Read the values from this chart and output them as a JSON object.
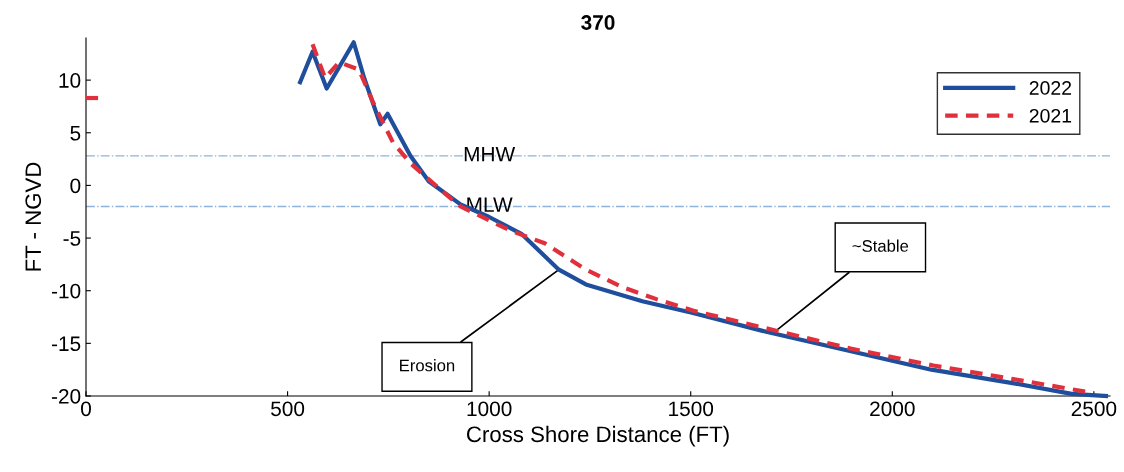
{
  "chart_data": {
    "type": "line",
    "title": "370",
    "xlabel": "Cross Shore Distance (FT)",
    "ylabel": "FT - NGVD",
    "xlim": [
      0,
      2540
    ],
    "ylim": [
      -20,
      14
    ],
    "xticks": [
      0,
      500,
      1000,
      1500,
      2000,
      2500
    ],
    "yticks": [
      -20,
      -15,
      -10,
      -5,
      0,
      5,
      10
    ],
    "grid": false,
    "legend": "top right",
    "series": [
      {
        "name": "2022",
        "color": "#1f4e9c",
        "line_style": "solid",
        "x": [
          531,
          562,
          597,
          664,
          690,
          730,
          748,
          805,
          850,
          929,
          1000,
          1080,
          1173,
          1240,
          1380,
          1503,
          1687,
          1892,
          2097,
          2302,
          2445,
          2530
        ],
        "values": [
          9.8,
          12.7,
          9.2,
          13.6,
          10.2,
          5.8,
          6.8,
          2.8,
          0.4,
          -1.8,
          -3.0,
          -4.6,
          -8.0,
          -9.4,
          -11.0,
          -12.1,
          -13.9,
          -15.7,
          -17.5,
          -18.8,
          -19.8,
          -20
        ]
      },
      {
        "name": "2021",
        "color": "#e0303c",
        "line_style": "dashed",
        "x": [
          562,
          593,
          628,
          677,
          712,
          761,
          805,
          885,
          929,
          1053,
          1138,
          1240,
          1333,
          1415,
          1507,
          1712,
          1897,
          2102,
          2286,
          2481
        ],
        "values": [
          13.4,
          10.2,
          11.7,
          11.0,
          7.9,
          4.1,
          2.1,
          -0.6,
          -2.0,
          -4.3,
          -5.5,
          -8.0,
          -9.7,
          -10.8,
          -11.9,
          -13.8,
          -15.5,
          -17.1,
          -18.3,
          -19.6
        ]
      },
      {
        "color": "#e0303c",
        "line_style": "dashed",
        "x": [
          0,
          30
        ],
        "values": [
          8.3,
          8.3
        ]
      }
    ],
    "ref_lines": [
      {
        "axis": "y",
        "value": 2.8,
        "label": "MHW",
        "color": "#8fb4dc",
        "line_style": "dashdot"
      },
      {
        "axis": "y",
        "value": -2.0,
        "label": "MLW",
        "color": "#8fb4dc",
        "line_style": "dashdot"
      }
    ],
    "annotations": [
      {
        "text": "Erosion",
        "x": 1173,
        "y": -8.0
      },
      {
        "text": "~Stable",
        "x": 1712,
        "y": -13.8
      }
    ]
  }
}
